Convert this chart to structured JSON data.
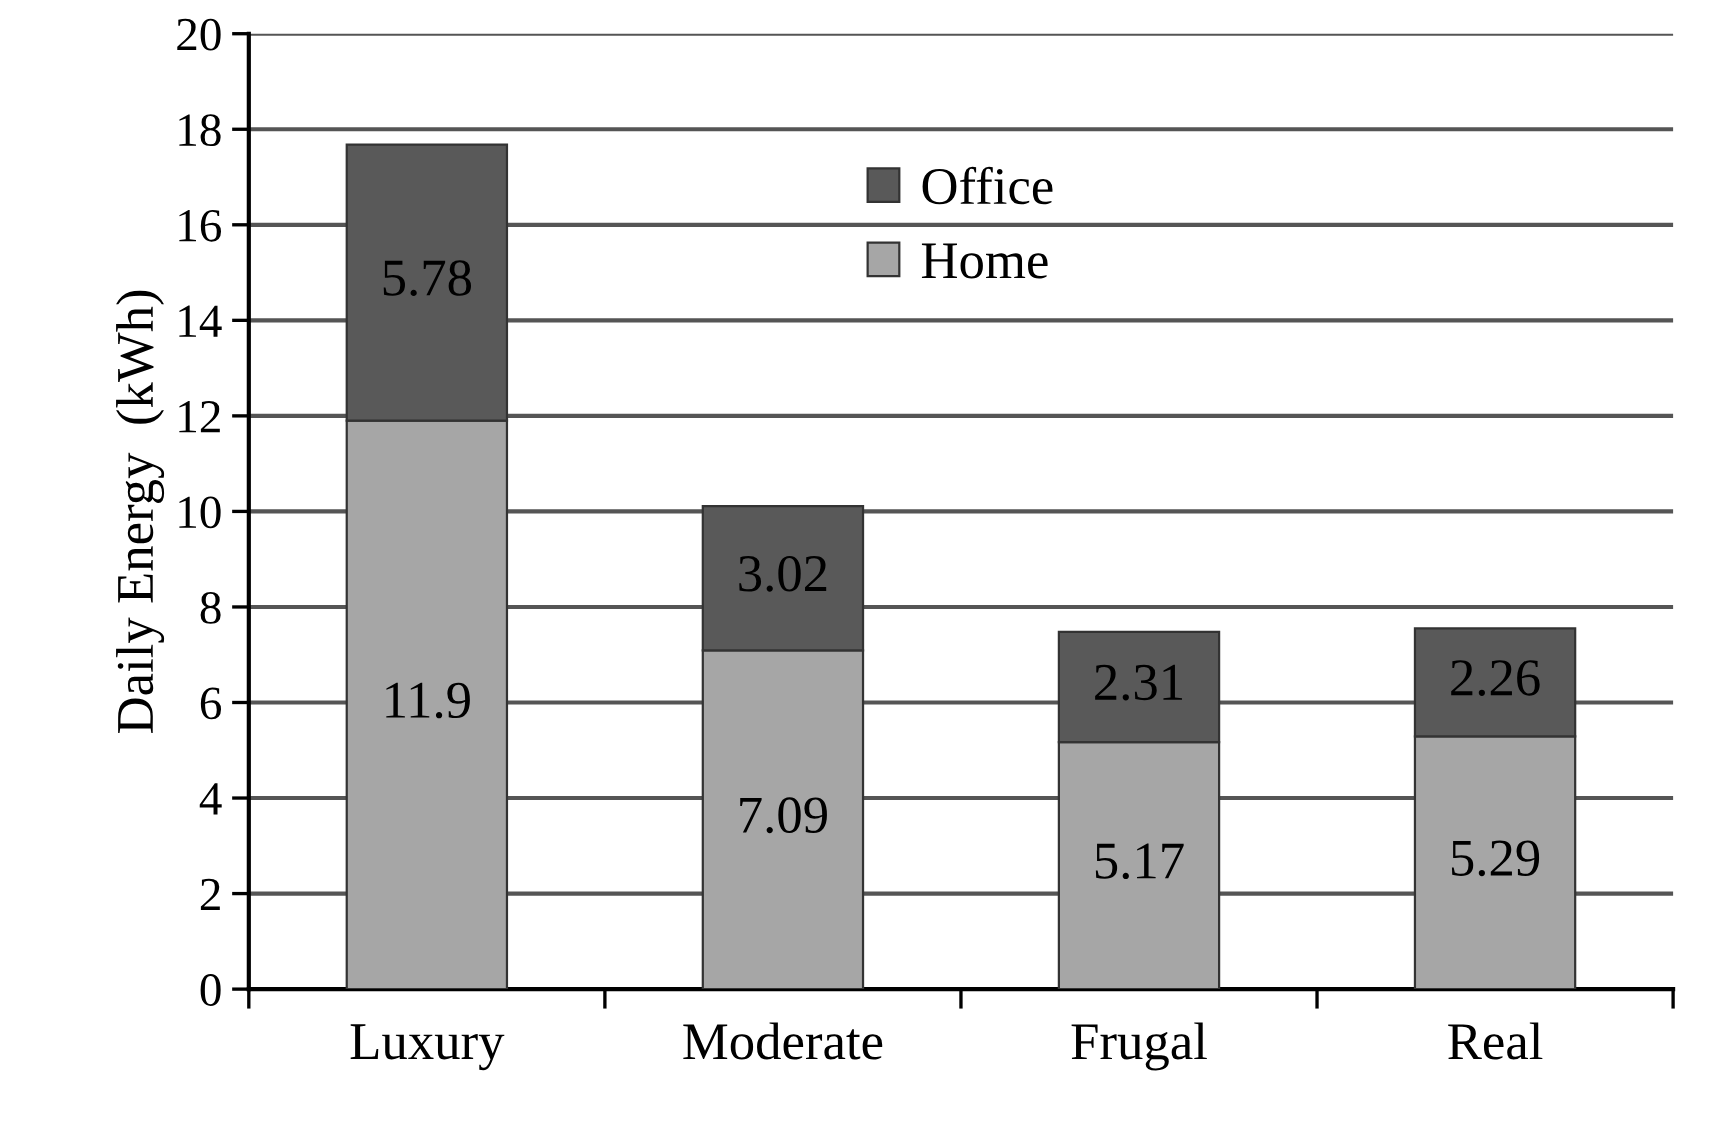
{
  "chart_data": {
    "type": "bar",
    "stacked": true,
    "ylabel": "Daily Energy  (kWh)",
    "categories": [
      "Luxury",
      "Moderate",
      "Frugal",
      "Real"
    ],
    "series": [
      {
        "name": "Home",
        "color": "#a6a6a6",
        "values": [
          11.9,
          7.09,
          5.17,
          5.29
        ]
      },
      {
        "name": "Office",
        "color": "#595959",
        "values": [
          5.78,
          3.02,
          2.31,
          2.26
        ]
      }
    ],
    "ylim": [
      0,
      20
    ],
    "yticks": [
      0,
      2,
      4,
      6,
      8,
      10,
      12,
      14,
      16,
      18,
      20
    ],
    "grid": "y",
    "legend": "top",
    "data_labels": true
  }
}
